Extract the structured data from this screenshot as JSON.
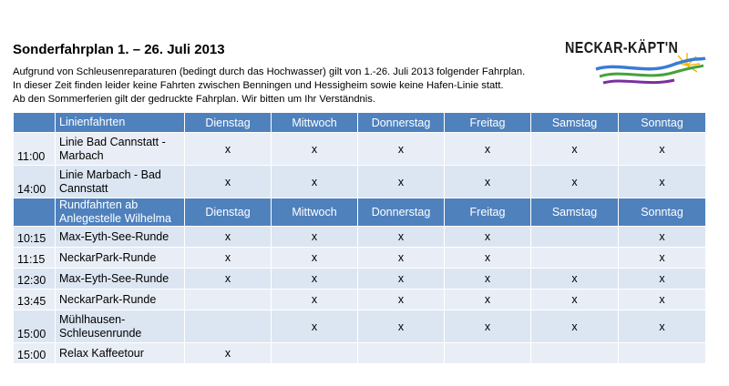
{
  "title": "Sonderfahrplan 1. – 26. Juli 2013",
  "intro": [
    "Aufgrund von Schleusenreparaturen (bedingt durch das Hochwasser) gilt von 1.-26. Juli 2013 folgender Fahrplan.",
    "In dieser Zeit finden leider keine Fahrten zwischen Benningen und Hessigheim sowie keine Hafen-Linie statt.",
    "Ab den Sommerferien gilt der gedruckte Fahrplan. Wir bitten um Ihr Verständnis."
  ],
  "logo": {
    "text": "NECKAR-KÄPT'N"
  },
  "colors": {
    "header": "#4f81bd",
    "row": "#dce6f2",
    "row_alt": "#e9eef6"
  },
  "days": [
    "Dienstag",
    "Mittwoch",
    "Donnerstag",
    "Freitag",
    "Samstag",
    "Sonntag"
  ],
  "sections": [
    {
      "header": "Linienfahrten",
      "rows": [
        {
          "time": "11:00",
          "name": "Linie Bad Cannstatt - Marbach",
          "marks": [
            "x",
            "x",
            "x",
            "x",
            "x",
            "x"
          ]
        },
        {
          "time": "14:00",
          "name": "Linie Marbach - Bad Cannstatt",
          "marks": [
            "x",
            "x",
            "x",
            "x",
            "x",
            "x"
          ]
        }
      ]
    },
    {
      "header": "Rundfahrten ab Anlegestelle Wilhelma",
      "rows": [
        {
          "time": "10:15",
          "name": "Max-Eyth-See-Runde",
          "marks": [
            "x",
            "x",
            "x",
            "x",
            "",
            "x"
          ]
        },
        {
          "time": "11:15",
          "name": "NeckarPark-Runde",
          "marks": [
            "x",
            "x",
            "x",
            "x",
            "",
            "x"
          ]
        },
        {
          "time": "12:30",
          "name": "Max-Eyth-See-Runde",
          "marks": [
            "x",
            "x",
            "x",
            "x",
            "x",
            "x"
          ]
        },
        {
          "time": "13:45",
          "name": "NeckarPark-Runde",
          "marks": [
            "",
            "x",
            "x",
            "x",
            "x",
            "x"
          ]
        },
        {
          "time": "15:00",
          "name": "Mühlhausen-Schleusenrunde",
          "marks": [
            "",
            "x",
            "x",
            "x",
            "x",
            "x"
          ]
        },
        {
          "time": "15:00",
          "name": "Relax Kaffeetour",
          "marks": [
            "x",
            "",
            "",
            "",
            "",
            ""
          ]
        }
      ]
    }
  ]
}
